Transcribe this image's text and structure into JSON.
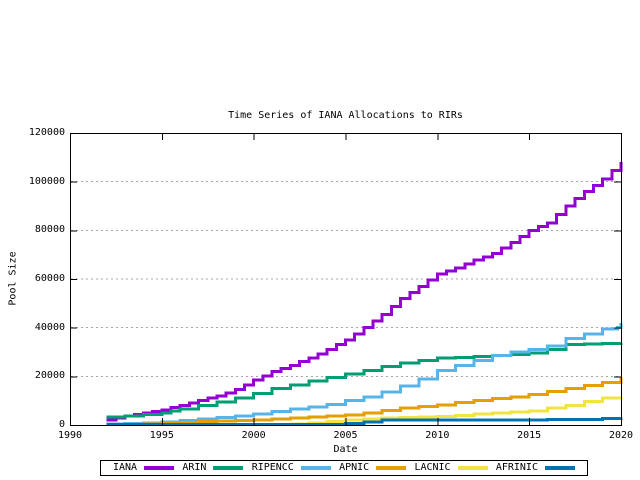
{
  "chart_data": {
    "type": "line",
    "line_style": "steps-after",
    "title": "Time Series of IANA Allocations to RIRs",
    "xlabel": "Date",
    "ylabel": "Pool Size",
    "xlim": [
      1990,
      2020
    ],
    "ylim": [
      0,
      120000
    ],
    "x_ticks": [
      "1990",
      "1995",
      "2000",
      "2005",
      "2010",
      "2015",
      "2020"
    ],
    "x_tick_values": [
      1990,
      1995,
      2000,
      2005,
      2010,
      2015,
      2020
    ],
    "y_ticks": [
      "0",
      "20000",
      "40000",
      "60000",
      "80000",
      "100000",
      "120000"
    ],
    "y_tick_values": [
      0,
      20000,
      40000,
      60000,
      80000,
      100000,
      120000
    ],
    "grid": "horizontal dashed gray at labeled y ticks",
    "legend_position": "bottom outside, boxed, horizontal",
    "grid_color": "#a6a6a6",
    "series": [
      {
        "name": "IANA",
        "color": "#9400d3",
        "points": [
          [
            1992,
            2000
          ],
          [
            1992.5,
            2800
          ],
          [
            1993,
            3600
          ],
          [
            1993.5,
            4300
          ],
          [
            1994,
            5000
          ],
          [
            1994.5,
            5600
          ],
          [
            1995,
            6200
          ],
          [
            1995.5,
            7100
          ],
          [
            1996,
            8000
          ],
          [
            1996.5,
            9000
          ],
          [
            1997,
            10000
          ],
          [
            1997.5,
            11000
          ],
          [
            1998,
            12000
          ],
          [
            1998.5,
            13200
          ],
          [
            1999,
            14500
          ],
          [
            1999.5,
            16500
          ],
          [
            2000,
            18500
          ],
          [
            2000.5,
            20200
          ],
          [
            2001,
            22000
          ],
          [
            2001.5,
            23200
          ],
          [
            2002,
            24500
          ],
          [
            2002.5,
            26000
          ],
          [
            2003,
            27500
          ],
          [
            2003.5,
            29200
          ],
          [
            2004,
            31000
          ],
          [
            2004.5,
            33000
          ],
          [
            2005,
            35000
          ],
          [
            2005.5,
            37500
          ],
          [
            2006,
            40000
          ],
          [
            2006.5,
            42700
          ],
          [
            2007,
            45500
          ],
          [
            2007.5,
            48700
          ],
          [
            2008,
            52000
          ],
          [
            2008.5,
            54500
          ],
          [
            2009,
            57000
          ],
          [
            2009.5,
            59500
          ],
          [
            2010,
            62000
          ],
          [
            2010.5,
            63200
          ],
          [
            2011,
            64500
          ],
          [
            2011.5,
            66100
          ],
          [
            2012,
            67800
          ],
          [
            2012.5,
            69100
          ],
          [
            2013,
            70500
          ],
          [
            2013.5,
            72700
          ],
          [
            2014,
            75000
          ],
          [
            2014.5,
            77500
          ],
          [
            2015,
            80000
          ],
          [
            2015.5,
            81500
          ],
          [
            2016,
            83000
          ],
          [
            2016.5,
            86500
          ],
          [
            2017,
            90000
          ],
          [
            2017.5,
            93000
          ],
          [
            2018,
            96000
          ],
          [
            2018.5,
            98500
          ],
          [
            2019,
            101000
          ],
          [
            2019.5,
            104500
          ],
          [
            2020,
            108000
          ]
        ]
      },
      {
        "name": "ARIN",
        "color": "#009e73",
        "points": [
          [
            1992,
            3300
          ],
          [
            1993,
            3800
          ],
          [
            1994,
            4300
          ],
          [
            1995,
            5000
          ],
          [
            1995.5,
            5800
          ],
          [
            1996,
            6500
          ],
          [
            1997,
            8000
          ],
          [
            1998,
            9500
          ],
          [
            1999,
            11000
          ],
          [
            2000,
            13000
          ],
          [
            2001,
            15000
          ],
          [
            2002,
            16500
          ],
          [
            2003,
            18000
          ],
          [
            2004,
            19500
          ],
          [
            2005,
            21000
          ],
          [
            2006,
            22500
          ],
          [
            2007,
            24000
          ],
          [
            2008,
            25500
          ],
          [
            2009,
            26500
          ],
          [
            2010,
            27500
          ],
          [
            2011,
            27800
          ],
          [
            2012,
            28200
          ],
          [
            2013,
            28600
          ],
          [
            2014,
            29000
          ],
          [
            2015,
            29500
          ],
          [
            2016,
            31000
          ],
          [
            2017,
            33000
          ],
          [
            2018,
            33200
          ],
          [
            2019,
            33400
          ],
          [
            2020,
            33700
          ]
        ]
      },
      {
        "name": "RIPENCC",
        "color": "#56b4e9",
        "points": [
          [
            1992,
            400
          ],
          [
            1993,
            700
          ],
          [
            1994,
            900
          ],
          [
            1995,
            1200
          ],
          [
            1996,
            1800
          ],
          [
            1997,
            2500
          ],
          [
            1998,
            3000
          ],
          [
            1999,
            3600
          ],
          [
            2000,
            4500
          ],
          [
            2001,
            5500
          ],
          [
            2002,
            6500
          ],
          [
            2003,
            7500
          ],
          [
            2004,
            8500
          ],
          [
            2005,
            10000
          ],
          [
            2006,
            11500
          ],
          [
            2007,
            13500
          ],
          [
            2008,
            16000
          ],
          [
            2009,
            19000
          ],
          [
            2010,
            22500
          ],
          [
            2011,
            24500
          ],
          [
            2012,
            26500
          ],
          [
            2013,
            28500
          ],
          [
            2014,
            30000
          ],
          [
            2015,
            31000
          ],
          [
            2016,
            32500
          ],
          [
            2017,
            35500
          ],
          [
            2018,
            37500
          ],
          [
            2019,
            39500
          ],
          [
            2019.8,
            40000
          ],
          [
            2020,
            42000
          ]
        ]
      },
      {
        "name": "APNIC",
        "color": "#e69f00",
        "points": [
          [
            1994,
            500
          ],
          [
            1995,
            800
          ],
          [
            1996,
            1100
          ],
          [
            1997,
            1400
          ],
          [
            1998,
            1700
          ],
          [
            1999,
            1900
          ],
          [
            2000,
            2100
          ],
          [
            2001,
            2400
          ],
          [
            2002,
            2800
          ],
          [
            2003,
            3200
          ],
          [
            2004,
            3700
          ],
          [
            2005,
            4200
          ],
          [
            2006,
            5000
          ],
          [
            2007,
            6000
          ],
          [
            2008,
            7000
          ],
          [
            2009,
            7700
          ],
          [
            2010,
            8300
          ],
          [
            2011,
            9200
          ],
          [
            2012,
            10000
          ],
          [
            2013,
            10800
          ],
          [
            2014,
            11600
          ],
          [
            2015,
            12500
          ],
          [
            2016,
            13700
          ],
          [
            2017,
            15000
          ],
          [
            2018,
            16200
          ],
          [
            2019,
            17500
          ],
          [
            2020,
            19700
          ]
        ]
      },
      {
        "name": "LACNIC",
        "color": "#f0e442",
        "points": [
          [
            2002,
            500
          ],
          [
            2003,
            900
          ],
          [
            2004,
            1400
          ],
          [
            2005,
            2000
          ],
          [
            2006,
            2400
          ],
          [
            2007,
            2800
          ],
          [
            2008,
            3100
          ],
          [
            2009,
            3300
          ],
          [
            2010,
            3500
          ],
          [
            2011,
            4000
          ],
          [
            2012,
            4500
          ],
          [
            2013,
            5000
          ],
          [
            2014,
            5400
          ],
          [
            2015,
            5800
          ],
          [
            2016,
            6900
          ],
          [
            2017,
            8000
          ],
          [
            2018,
            9600
          ],
          [
            2019,
            11000
          ],
          [
            2020,
            11500
          ]
        ]
      },
      {
        "name": "AFRINIC",
        "color": "#0072b2",
        "points": [
          [
            1992,
            150
          ],
          [
            2004,
            300
          ],
          [
            2005,
            700
          ],
          [
            2006,
            1300
          ],
          [
            2007,
            2000
          ],
          [
            2012,
            2100
          ],
          [
            2016,
            2200
          ],
          [
            2019,
            2700
          ],
          [
            2020,
            3000
          ]
        ]
      }
    ]
  }
}
